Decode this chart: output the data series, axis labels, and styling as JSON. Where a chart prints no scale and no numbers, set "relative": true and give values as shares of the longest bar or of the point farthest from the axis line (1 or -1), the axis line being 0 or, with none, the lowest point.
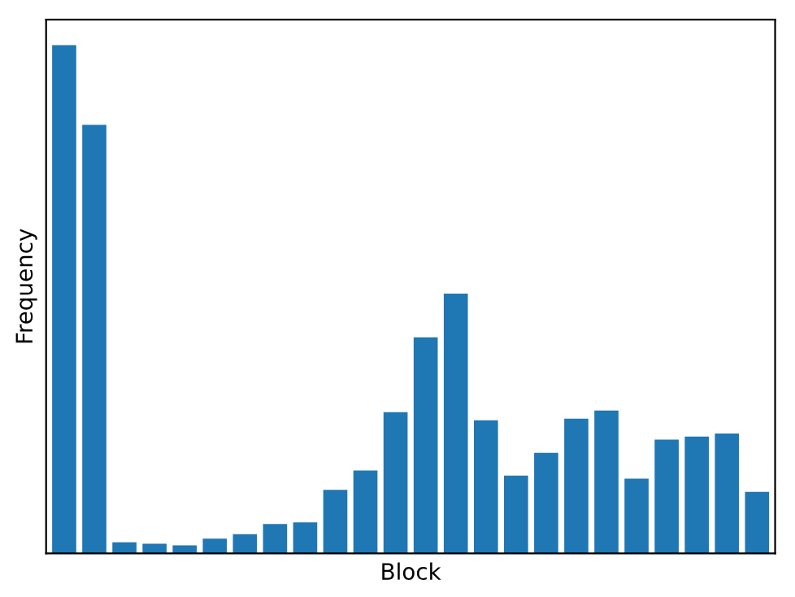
{
  "chart_data": {
    "type": "bar",
    "relative": true,
    "xlabel": "Block",
    "ylabel": "Frequency",
    "color": "#1f77b4",
    "categories": [
      null,
      null,
      null,
      null,
      null,
      null,
      null,
      null,
      null,
      null,
      null,
      null,
      null,
      null,
      null,
      null,
      null,
      null,
      null,
      null,
      null,
      null,
      null,
      null
    ],
    "values": [
      1,
      0.843,
      0.022,
      0.019,
      0.016,
      0.029,
      0.038,
      0.058,
      0.061,
      0.125,
      0.163,
      0.278,
      0.425,
      0.511,
      0.262,
      0.153,
      0.198,
      0.265,
      0.281,
      0.147,
      0.224,
      0.23,
      0.236,
      0.121
    ]
  }
}
